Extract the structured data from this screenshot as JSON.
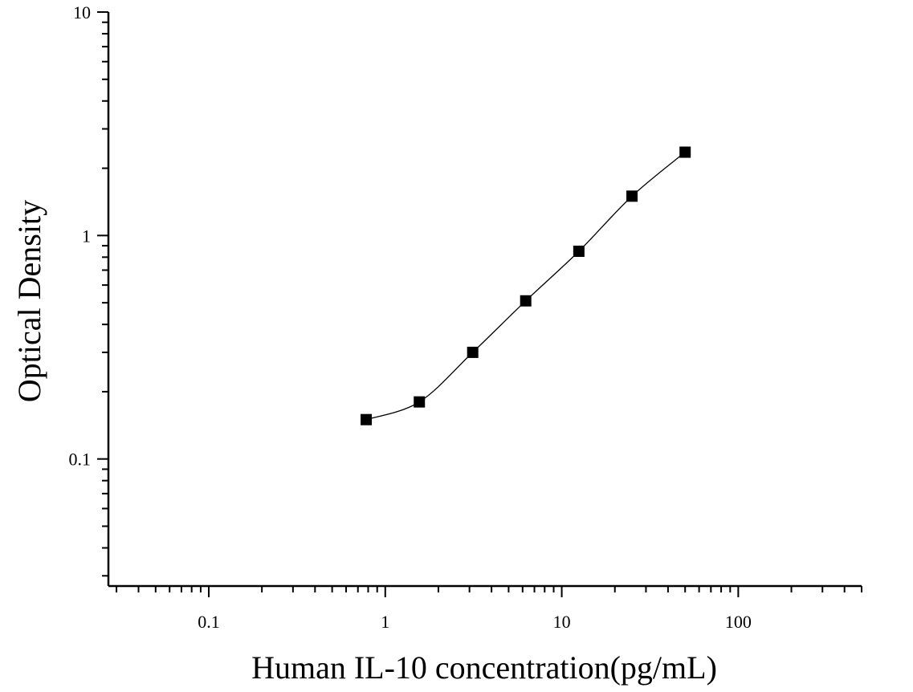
{
  "chart_data": {
    "type": "scatter",
    "title": "",
    "xlabel": "Human IL-10 concentration(pg/mL)",
    "ylabel": "Optical Density",
    "x_scale": "log",
    "y_scale": "log",
    "xlim": [
      0.027,
      500
    ],
    "ylim": [
      0.027,
      10
    ],
    "grid": false,
    "legend": "none",
    "x_ticks": [
      {
        "value": 0.1,
        "label": "0.1"
      },
      {
        "value": 1,
        "label": "1"
      },
      {
        "value": 10,
        "label": "10"
      },
      {
        "value": 100,
        "label": "100"
      }
    ],
    "y_ticks": [
      {
        "value": 0.1,
        "label": "0.1"
      },
      {
        "value": 1,
        "label": "1"
      },
      {
        "value": 10,
        "label": "10"
      }
    ],
    "series": [
      {
        "x": [
          0.78,
          1.56,
          3.13,
          6.25,
          12.5,
          25,
          50
        ],
        "y": [
          0.15,
          0.18,
          0.3,
          0.51,
          0.85,
          1.5,
          2.36
        ],
        "marker": "square",
        "fit_curve": true,
        "color": "#000000"
      }
    ]
  }
}
